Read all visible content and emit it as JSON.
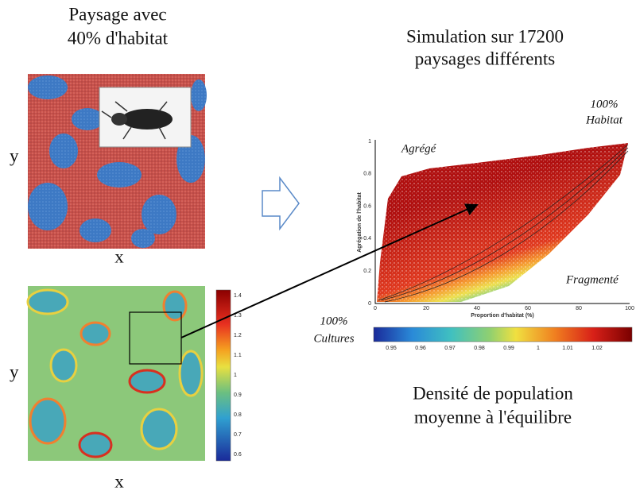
{
  "left_panel": {
    "title": [
      "Paysage avec",
      "40% d'habitat"
    ],
    "top_map": {
      "y_label": "y",
      "x_label": "x"
    },
    "bottom_map": {
      "y_label": "y",
      "x_label": "x",
      "colorbar_ticks": [
        "1.4",
        "1.3",
        "1.2",
        "1.1",
        "1",
        "0.9",
        "0.8",
        "0.7",
        "0.6"
      ]
    }
  },
  "right_panel": {
    "title": [
      "Simulation sur 17200",
      "paysages différents"
    ],
    "scatter": {
      "x_label": "Proportion d'habitat (%)",
      "y_label": "Agrégation de l'habitat",
      "x_ticks": [
        "0",
        "20",
        "40",
        "60",
        "80",
        "100"
      ],
      "y_ticks": [
        "0",
        "0.2",
        "0.4",
        "0.6",
        "0.8",
        "1"
      ],
      "annotations": {
        "top_right": [
          "100%",
          "Habitat"
        ],
        "top_left": "Agrégé",
        "bottom_right": "Fragmenté"
      }
    },
    "colorbar": {
      "left_label": [
        "100%",
        "Cultures"
      ],
      "ticks": [
        "0.95",
        "0.96",
        "0.97",
        "0.98",
        "0.99",
        "1",
        "1.01",
        "1.02"
      ]
    },
    "caption": [
      "Densité de population",
      "moyenne à l'équilibre"
    ]
  }
}
